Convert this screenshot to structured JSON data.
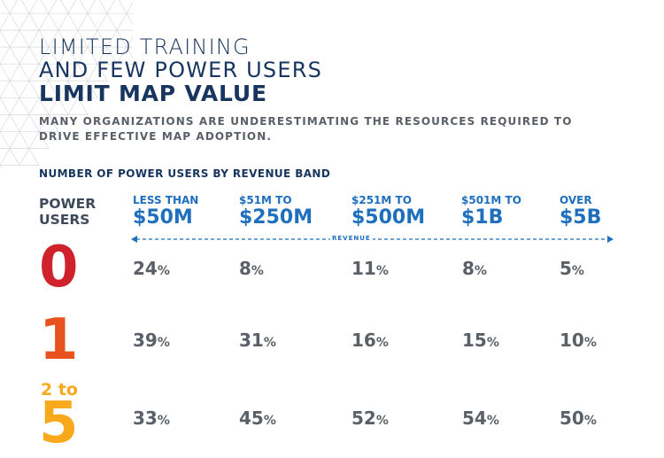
{
  "title": {
    "line1": "LIMITED TRAINING",
    "line2": "AND FEW POWER USERS",
    "line3": "LIMIT MAP VALUE"
  },
  "subtitle": "MANY ORGANIZATIONS ARE UNDERESTIMATING THE RESOURCES REQUIRED TO DRIVE EFFECTIVE MAP ADOPTION.",
  "colors": {
    "title": "#17355e",
    "accent_blue": "#1f6fbf",
    "value_gray": "#5a6068",
    "row_0": "#d0222d",
    "row_1": "#e8521f",
    "row_2": "#f7a81b"
  },
  "chart_data": {
    "type": "table",
    "title": "NUMBER OF POWER USERS BY REVENUE BAND",
    "y_header": [
      "POWER",
      "USERS"
    ],
    "axis_label": "REVENUE",
    "columns": [
      {
        "prefix": "LESS THAN",
        "main": "$50M"
      },
      {
        "prefix": "$51M TO",
        "main": "$250M"
      },
      {
        "prefix": "$251M TO",
        "main": "$500M"
      },
      {
        "prefix": "$501M TO",
        "main": "$1B"
      },
      {
        "prefix": "OVER",
        "main": "$5B"
      }
    ],
    "rows": [
      {
        "label_small": "",
        "label": "0",
        "values": [
          24,
          8,
          11,
          8,
          5
        ]
      },
      {
        "label_small": "",
        "label": "1",
        "values": [
          39,
          31,
          16,
          15,
          10
        ]
      },
      {
        "label_small": "2 to",
        "label": "5",
        "values": [
          33,
          45,
          52,
          54,
          50
        ]
      }
    ],
    "unit": "%"
  }
}
